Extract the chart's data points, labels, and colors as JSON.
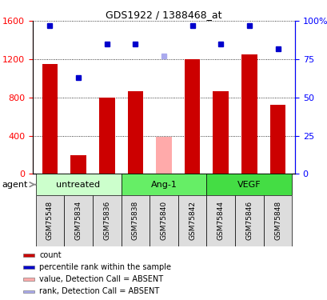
{
  "title": "GDS1922 / 1388468_at",
  "categories": [
    "GSM75548",
    "GSM75834",
    "GSM75836",
    "GSM75838",
    "GSM75840",
    "GSM75842",
    "GSM75844",
    "GSM75846",
    "GSM75848"
  ],
  "bar_values": [
    1150,
    200,
    800,
    870,
    null,
    1200,
    870,
    1250,
    720
  ],
  "bar_absent_values": [
    null,
    null,
    null,
    null,
    390,
    null,
    null,
    null,
    null
  ],
  "rank_values": [
    97,
    63,
    85,
    85,
    null,
    97,
    85,
    97,
    82
  ],
  "rank_absent_values": [
    null,
    null,
    null,
    null,
    77,
    null,
    null,
    null,
    null
  ],
  "bar_color": "#cc0000",
  "bar_absent_color": "#ffaaaa",
  "rank_color": "#0000cc",
  "rank_absent_color": "#aaaaee",
  "ylim_left": [
    0,
    1600
  ],
  "ylim_right": [
    0,
    100
  ],
  "yticks_left": [
    0,
    400,
    800,
    1200,
    1600
  ],
  "yticks_right": [
    0,
    25,
    50,
    75,
    100
  ],
  "ytick_labels_right": [
    "0",
    "25",
    "50",
    "75",
    "100%"
  ],
  "groups": [
    {
      "label": "untreated",
      "indices": [
        0,
        1,
        2
      ],
      "color": "#ccffcc"
    },
    {
      "label": "Ang-1",
      "indices": [
        3,
        4,
        5
      ],
      "color": "#66ee66"
    },
    {
      "label": "VEGF",
      "indices": [
        6,
        7,
        8
      ],
      "color": "#44dd44"
    }
  ],
  "legend_items": [
    {
      "label": "count",
      "color": "#cc0000"
    },
    {
      "label": "percentile rank within the sample",
      "color": "#0000cc"
    },
    {
      "label": "value, Detection Call = ABSENT",
      "color": "#ffaaaa"
    },
    {
      "label": "rank, Detection Call = ABSENT",
      "color": "#aaaaee"
    }
  ],
  "bar_width": 0.55,
  "marker_size": 5
}
